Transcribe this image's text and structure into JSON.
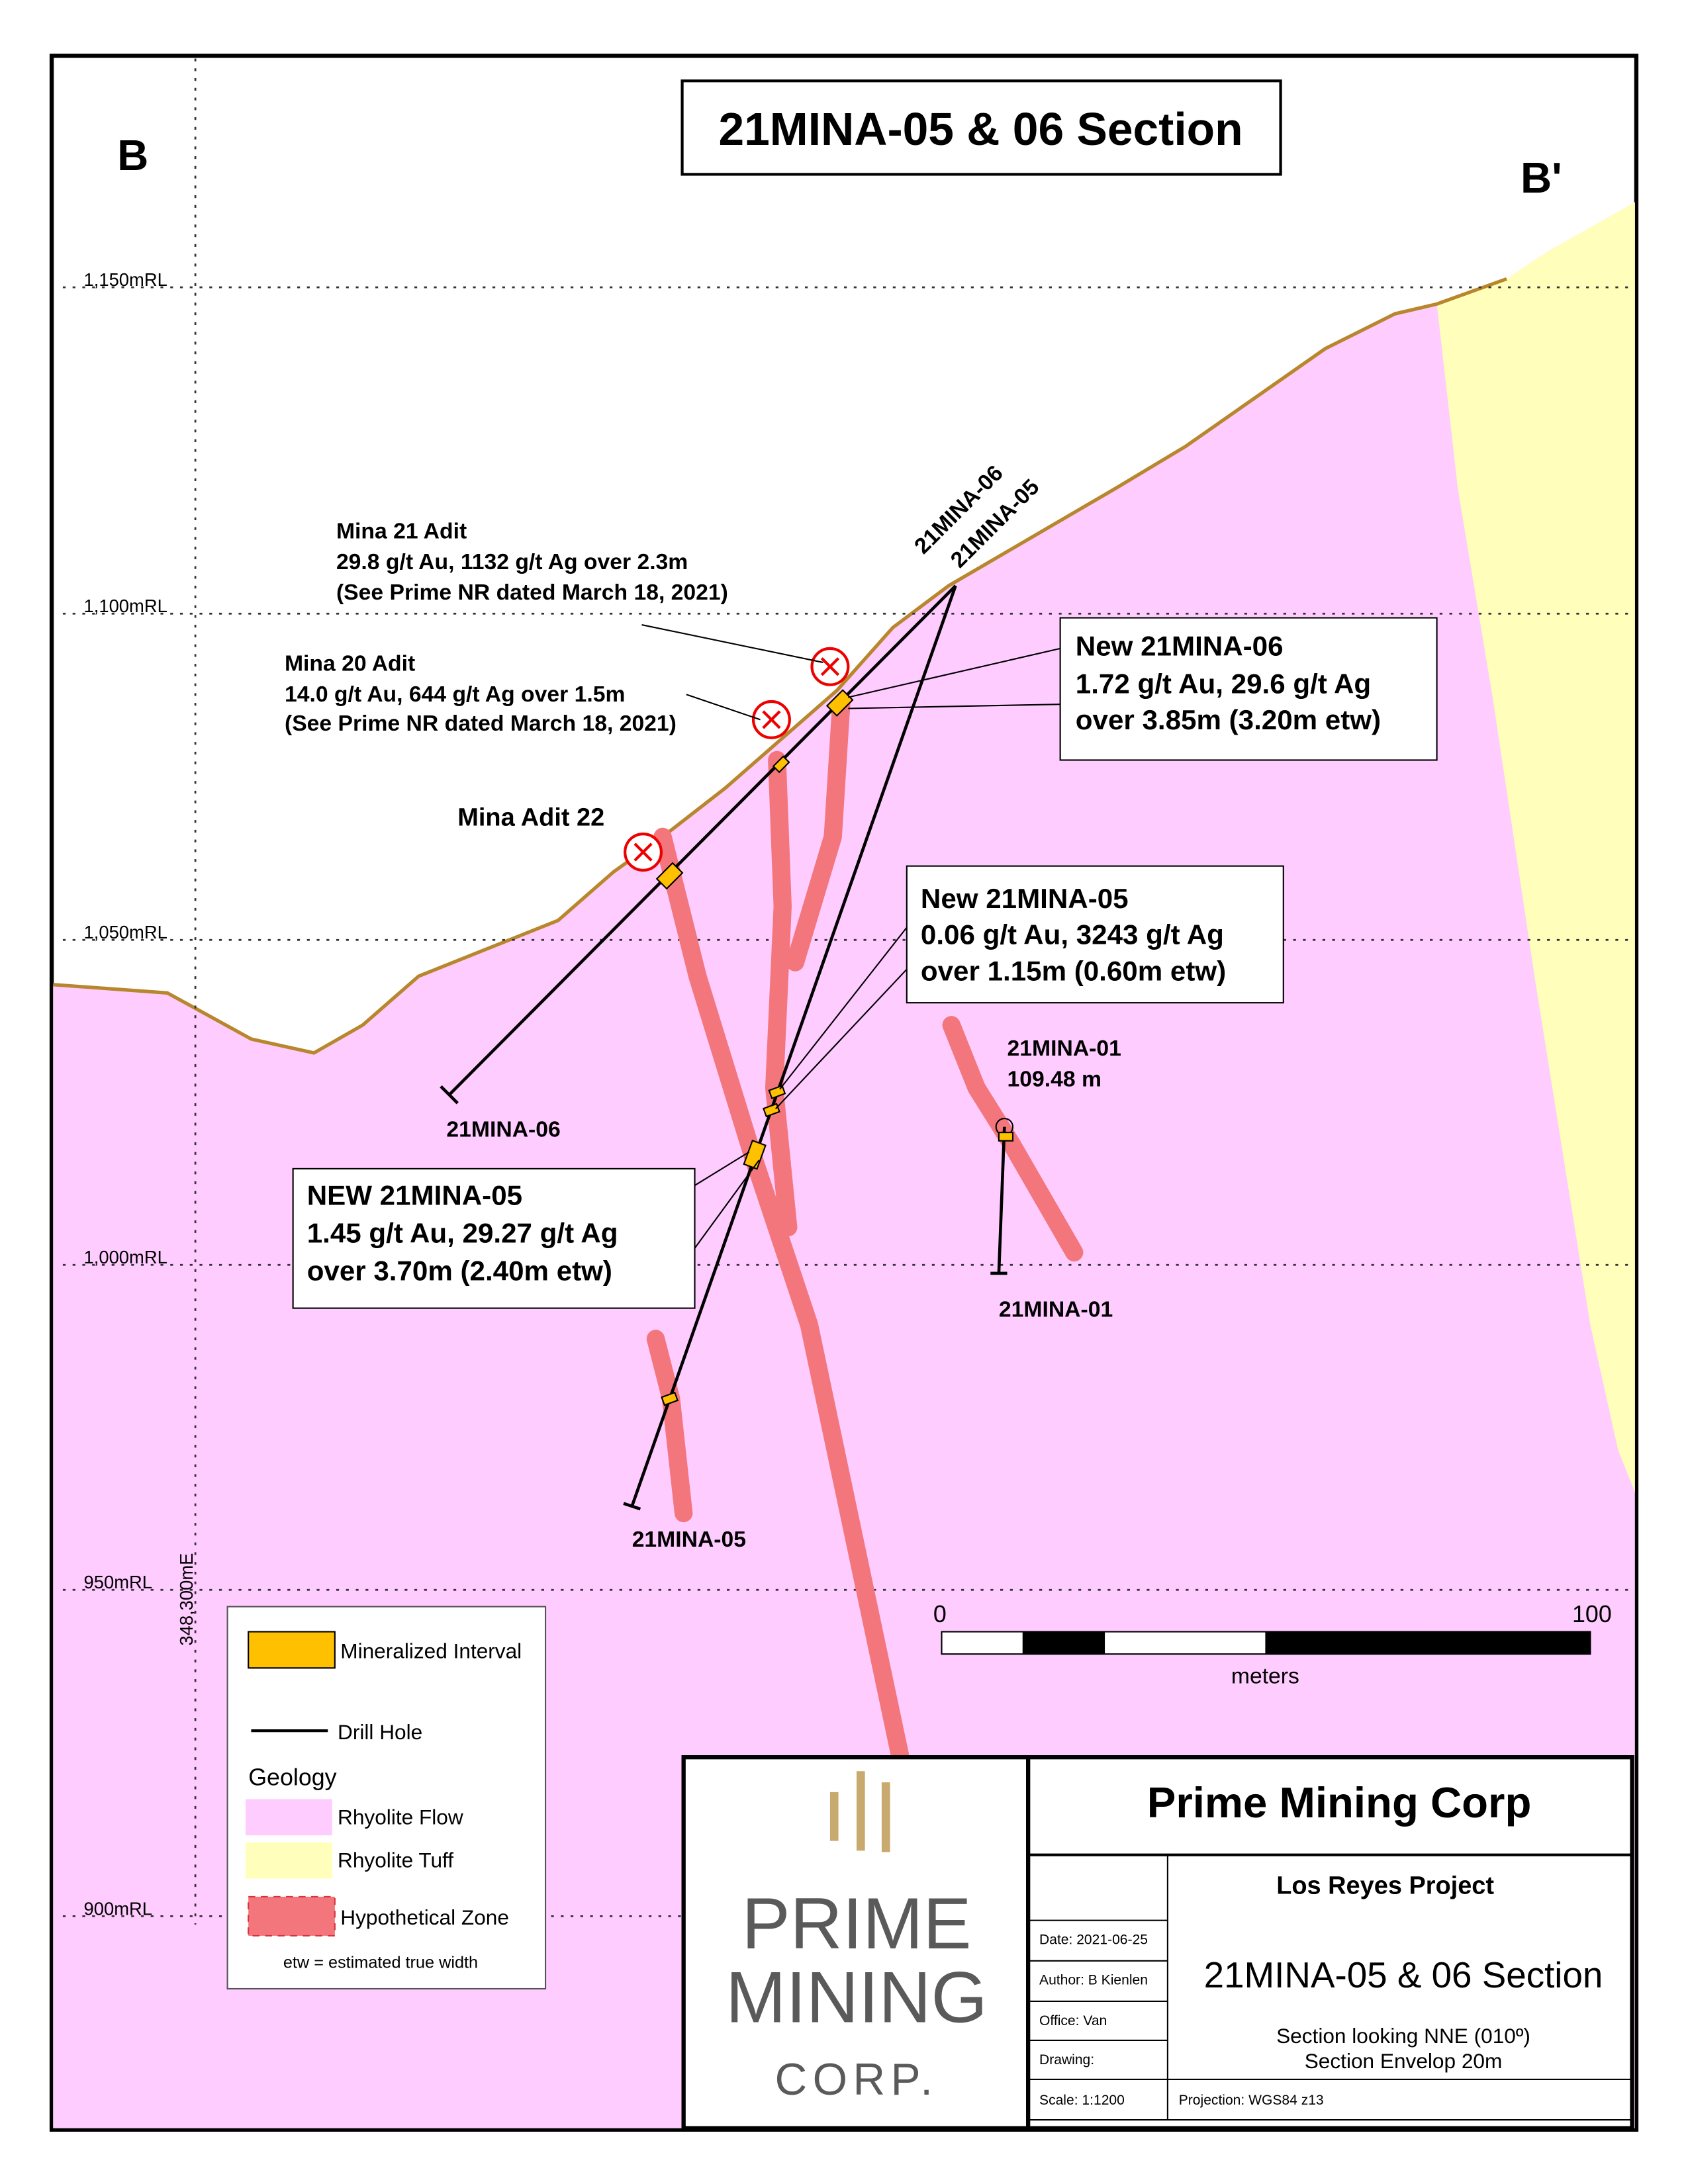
{
  "header": {
    "title": "21MINA-05 & 06 Section",
    "section_start": "B",
    "section_end": "B'"
  },
  "elevation_labels": [
    "1,150mRL",
    "1,100mRL",
    "1,050mRL",
    "1,000mRL",
    "950mRL",
    "900mRL"
  ],
  "easting_label": "348,300mE",
  "drill_holes": {
    "collar_labels": [
      "21MINA-06",
      "21MINA-05"
    ],
    "end_labels": [
      "21MINA-06",
      "21MINA-05",
      "21MINA-01"
    ],
    "mina01_label": [
      "21MINA-01",
      "109.48 m"
    ]
  },
  "adits": {
    "mina21": [
      "Mina 21 Adit",
      "29.8 g/t Au, 1132 g/t Ag over 2.3m",
      "(See Prime NR dated March 18, 2021)"
    ],
    "mina20": [
      "Mina 20 Adit",
      "14.0 g/t Au, 644 g/t Ag over 1.5m",
      "(See Prime NR dated March 18, 2021)"
    ],
    "mina22": "Mina Adit 22"
  },
  "callouts": [
    [
      "New 21MINA-06",
      "1.72 g/t Au, 29.6 g/t Ag",
      "over 3.85m (3.20m etw)"
    ],
    [
      "New 21MINA-05",
      "0.06 g/t Au, 3243 g/t Ag",
      "over 1.15m (0.60m etw)"
    ],
    [
      "NEW 21MINA-05",
      " 1.45 g/t Au, 29.27 g/t Ag",
      "over 3.70m (2.40m etw)"
    ]
  ],
  "scale_bar": {
    "start": "0",
    "end": "100",
    "unit": "meters"
  },
  "legend": {
    "mineralized": "Mineralized Interval",
    "drill_hole": "Drill Hole",
    "geology": "Geology",
    "rhyolite_flow": "Rhyolite Flow",
    "rhyolite_tuff": "Rhyolite Tuff",
    "hypothetical": "Hypothetical Zone",
    "note": "etw = estimated true width"
  },
  "title_block": {
    "logo": [
      "PRIME",
      "MINING",
      "CORP."
    ],
    "company": "Prime Mining Corp",
    "project": "Los Reyes Project",
    "date": "Date: 2021-06-25",
    "author": "Author: B Kienlen",
    "office": "Office: Van",
    "drawing": "Drawing:",
    "scale": "Scale: 1:1200",
    "section_title": "21MINA-05 & 06 Section",
    "section_note": [
      "Section looking NNE (010º)",
      "Section Envelop 20m"
    ],
    "projection": "Projection: WGS84 z13"
  }
}
